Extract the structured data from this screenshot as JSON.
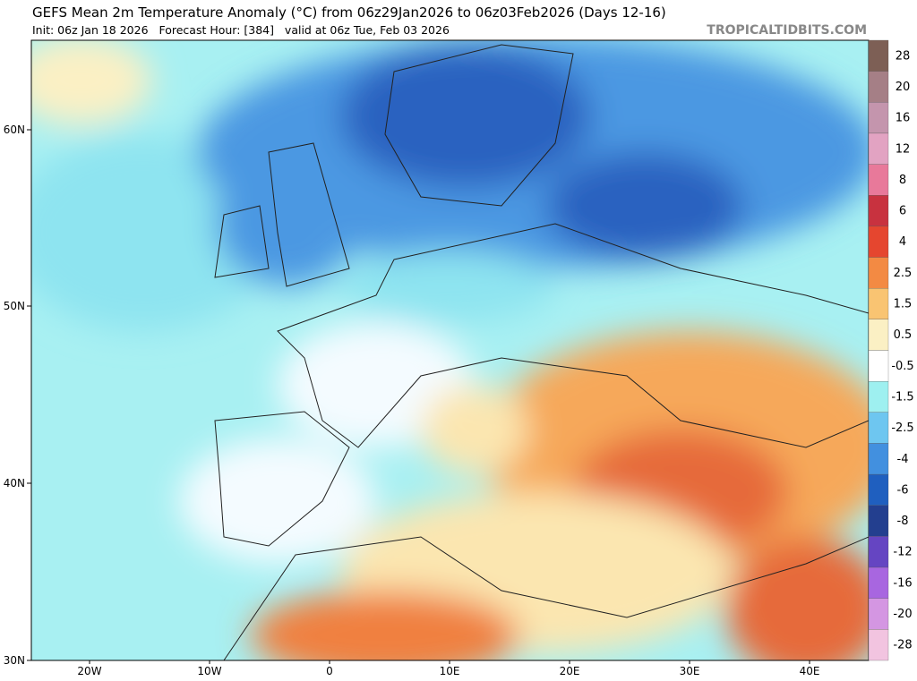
{
  "header": {
    "title": "GEFS Mean 2m Temperature Anomaly (°C) from 06z29Jan2026 to 06z03Feb2026 (Days 12-16)",
    "subtitle": "Init: 06z Jan 18 2026   Forecast Hour: [384]   valid at 06z Tue, Feb 03 2026",
    "brand": "TROPICALTIDBITS.COM"
  },
  "map": {
    "lat_labels": [
      "60N",
      "50N",
      "40N",
      "30N"
    ],
    "lon_labels": [
      "20W",
      "10W",
      "0",
      "10E",
      "20E",
      "30E",
      "40E"
    ]
  },
  "colorbar": {
    "levels": [
      {
        "label": 28,
        "color": "#7d5f55"
      },
      {
        "label": 20,
        "color": "#a57f86"
      },
      {
        "label": 16,
        "color": "#c495ad"
      },
      {
        "label": 12,
        "color": "#e2a3c2"
      },
      {
        "label": 8,
        "color": "#e8799a"
      },
      {
        "label": 6,
        "color": "#c8323f"
      },
      {
        "label": 4,
        "color": "#e5462f"
      },
      {
        "label": 2.5,
        "color": "#f38a43"
      },
      {
        "label": 1.5,
        "color": "#f9c472"
      },
      {
        "label": 0.5,
        "color": "#fbf0c4"
      },
      {
        "label": -0.5,
        "color": "#ffffff"
      },
      {
        "label": -1.5,
        "color": "#9ef0f0"
      },
      {
        "label": -2.5,
        "color": "#6ec6f0"
      },
      {
        "label": -4,
        "color": "#4290df"
      },
      {
        "label": -6,
        "color": "#1f5fbf"
      },
      {
        "label": -8,
        "color": "#233f8f"
      },
      {
        "label": -12,
        "color": "#6545c2"
      },
      {
        "label": -16,
        "color": "#a866e0"
      },
      {
        "label": -20,
        "color": "#d496e2"
      },
      {
        "label": -28,
        "color": "#f2c4e0"
      }
    ]
  }
}
